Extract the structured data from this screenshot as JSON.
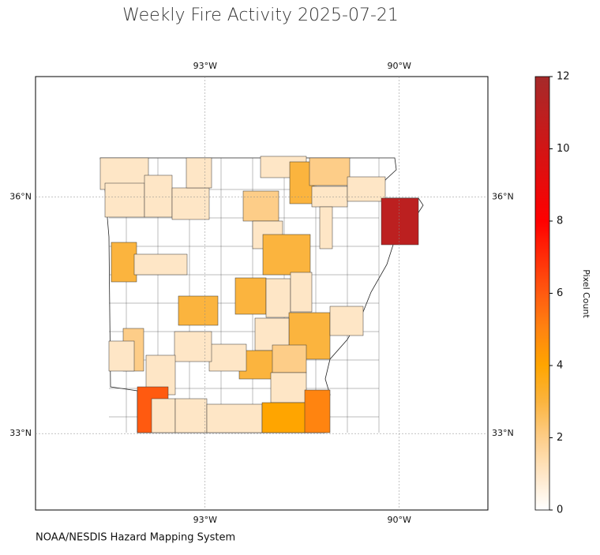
{
  "chart_data": {
    "type": "choropleth",
    "title": "Weekly Fire Activity 2025-07-21",
    "source": "NOAA/NESDIS Hazard Mapping System",
    "colorbar_label": "Pixel Count",
    "clim": [
      0,
      12
    ],
    "cticks": [
      0,
      2,
      4,
      6,
      8,
      10,
      12
    ],
    "colorscale": [
      [
        0,
        "#ffffff"
      ],
      [
        1,
        "#fee6c6"
      ],
      [
        2,
        "#fdcd88"
      ],
      [
        3,
        "#fbb43e"
      ],
      [
        4,
        "#ffa500"
      ],
      [
        5,
        "#ff8410"
      ],
      [
        6,
        "#ff5a10"
      ],
      [
        8,
        "#ff0000"
      ],
      [
        12,
        "#a52a2a"
      ]
    ],
    "xlim": [
      -95.62,
      -88.63
    ],
    "ylim": [
      32.03,
      37.53
    ],
    "xticks": [
      {
        "value": -93,
        "label": "93°W"
      },
      {
        "value": -90,
        "label": "90°W"
      }
    ],
    "yticks": [
      {
        "value": 36,
        "label": "36°N"
      },
      {
        "value": 33,
        "label": "33°N"
      }
    ],
    "grid": true,
    "values": [
      1,
      1,
      1,
      1,
      1,
      2,
      1,
      1,
      3,
      2,
      1,
      1,
      1,
      11,
      3,
      3,
      1,
      3,
      1,
      1,
      3,
      3,
      1,
      1,
      3,
      2,
      1,
      2,
      1,
      1,
      1,
      1,
      6,
      1,
      1,
      1,
      4,
      5
    ]
  }
}
